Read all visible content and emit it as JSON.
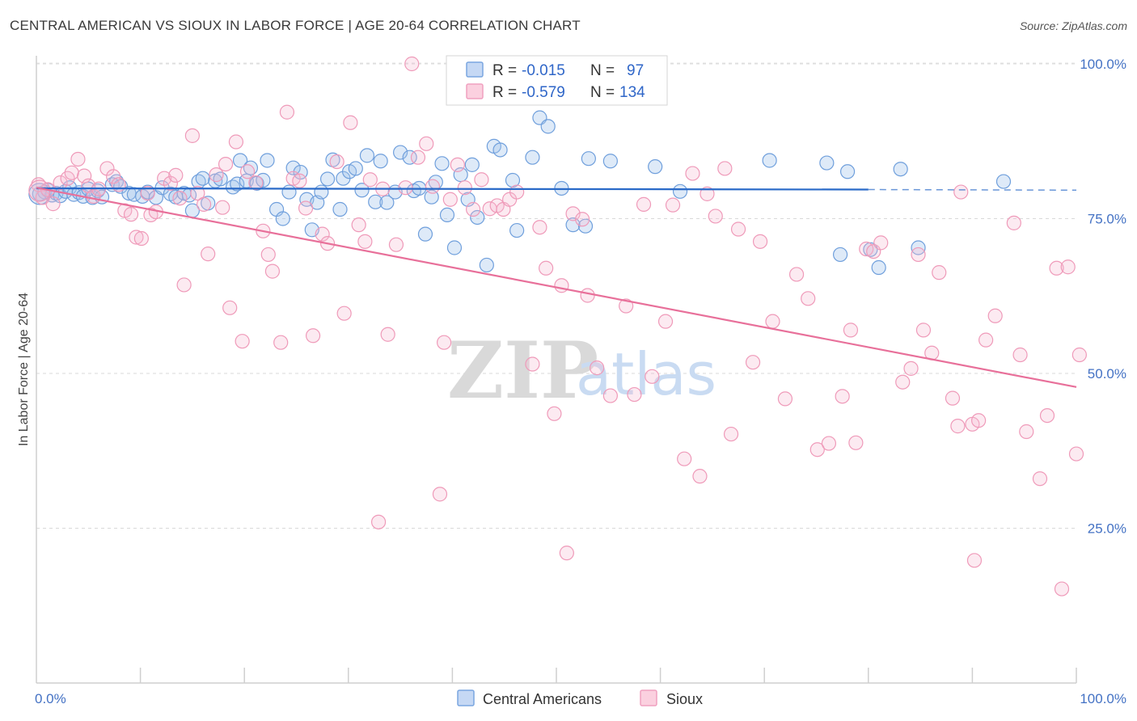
{
  "title": "CENTRAL AMERICAN VS SIOUX IN LABOR FORCE | AGE 20-64 CORRELATION CHART",
  "source": "Source: ZipAtlas.com",
  "watermark": {
    "zip": "ZIP",
    "atlas": "atlas"
  },
  "legend": {
    "rows": [
      {
        "r_label": "R = ",
        "r_value": "-0.015",
        "n_label": "N = ",
        "n_value": "97"
      },
      {
        "r_label": "R = ",
        "r_value": "-0.579",
        "n_label": "N = ",
        "n_value": "134"
      }
    ]
  },
  "bottom_legend": [
    "Central Americans",
    "Sioux"
  ],
  "chart_data": {
    "type": "scatter",
    "xlabel": "",
    "ylabel": "In Labor Force | Age 20-64",
    "xlim": [
      0,
      100
    ],
    "ylim": [
      0,
      103
    ],
    "x_tick_labels": [
      "0.0%",
      "100.0%"
    ],
    "y_ticks": [
      {
        "value": 100,
        "label": "100.0%"
      },
      {
        "value": 75,
        "label": "75.0%"
      },
      {
        "value": 50,
        "label": "50.0%"
      },
      {
        "value": 25,
        "label": "25.0%"
      }
    ],
    "grid": "horizontal dashed",
    "legend_position": "top-center",
    "colors": {
      "central": "#7aa6e0",
      "sioux": "#f0a0bf",
      "central_line": "#2a6ac8",
      "sioux_line": "#e8709a"
    },
    "series": [
      {
        "name": "Central Americans",
        "trend": {
          "x": [
            0,
            80
          ],
          "y": [
            79.9,
            79.7
          ],
          "dashed_to": [
            100,
            79.6
          ]
        },
        "points": [
          [
            0.3,
            79
          ],
          [
            0.8,
            79.3
          ],
          [
            1.1,
            79.6
          ],
          [
            1.5,
            78.8
          ],
          [
            1.9,
            79.1
          ],
          [
            2.3,
            78.7
          ],
          [
            2.8,
            79.4
          ],
          [
            3.2,
            80
          ],
          [
            3.6,
            78.9
          ],
          [
            4.1,
            79.2
          ],
          [
            4.5,
            78.6
          ],
          [
            5,
            79.8
          ],
          [
            5.4,
            78.4
          ],
          [
            5.9,
            79.5
          ],
          [
            6.3,
            78.5
          ],
          [
            7.3,
            80.5
          ],
          [
            7.7,
            81
          ],
          [
            8.1,
            80.2
          ],
          [
            8.9,
            79.1
          ],
          [
            9.4,
            78.9
          ],
          [
            10.2,
            78.6
          ],
          [
            10.7,
            79.3
          ],
          [
            11.5,
            78.4
          ],
          [
            12.1,
            80
          ],
          [
            12.9,
            79
          ],
          [
            13.4,
            78.5
          ],
          [
            14.2,
            79.1
          ],
          [
            14.7,
            78.8
          ],
          [
            15,
            76.3
          ],
          [
            15.6,
            81
          ],
          [
            16,
            81.5
          ],
          [
            16.5,
            77.5
          ],
          [
            17.2,
            81.1
          ],
          [
            17.7,
            81.4
          ],
          [
            18.9,
            80.1
          ],
          [
            19.3,
            80.6
          ],
          [
            19.6,
            84.4
          ],
          [
            20.2,
            81.1
          ],
          [
            20.6,
            83.2
          ],
          [
            21.2,
            80.7
          ],
          [
            21.8,
            81.2
          ],
          [
            22.2,
            84.4
          ],
          [
            23.1,
            76.5
          ],
          [
            23.7,
            75
          ],
          [
            24.3,
            79.3
          ],
          [
            24.7,
            83.2
          ],
          [
            25.4,
            82.5
          ],
          [
            26,
            78.1
          ],
          [
            26.5,
            73.2
          ],
          [
            27,
            77.6
          ],
          [
            27.4,
            79.3
          ],
          [
            28,
            81.4
          ],
          [
            28.5,
            84.5
          ],
          [
            29.2,
            76.5
          ],
          [
            29.5,
            81.5
          ],
          [
            30.1,
            82.6
          ],
          [
            30.7,
            83.1
          ],
          [
            31.3,
            79.6
          ],
          [
            31.8,
            85.2
          ],
          [
            32.6,
            77.7
          ],
          [
            33.1,
            84.3
          ],
          [
            33.7,
            77.6
          ],
          [
            34.5,
            79.3
          ],
          [
            35,
            85.7
          ],
          [
            35.9,
            84.9
          ],
          [
            36.3,
            79.5
          ],
          [
            36.8,
            79.9
          ],
          [
            37.4,
            72.5
          ],
          [
            38,
            78.5
          ],
          [
            38.4,
            80.9
          ],
          [
            39,
            83.9
          ],
          [
            39.5,
            75.6
          ],
          [
            40.2,
            70.3
          ],
          [
            40.8,
            82.1
          ],
          [
            41.5,
            78.1
          ],
          [
            41.9,
            83.7
          ],
          [
            42.4,
            75.2
          ],
          [
            43.3,
            67.5
          ],
          [
            44,
            86.7
          ],
          [
            44.6,
            86.1
          ],
          [
            45.8,
            81.2
          ],
          [
            46.2,
            73.1
          ],
          [
            47.7,
            84.9
          ],
          [
            48.4,
            91.3
          ],
          [
            49.2,
            89.9
          ],
          [
            50.5,
            79.9
          ],
          [
            51.6,
            74
          ],
          [
            52.8,
            73.8
          ],
          [
            53.1,
            84.7
          ],
          [
            55.2,
            84.3
          ],
          [
            59.5,
            83.4
          ],
          [
            61.9,
            79.4
          ],
          [
            70.5,
            84.4
          ],
          [
            76,
            84
          ],
          [
            77.3,
            69.2
          ],
          [
            78,
            82.6
          ],
          [
            80.2,
            70
          ],
          [
            81,
            67.1
          ],
          [
            83.1,
            83
          ],
          [
            84.8,
            70.3
          ],
          [
            93,
            81
          ]
        ]
      },
      {
        "name": "Sioux",
        "trend": {
          "x": [
            0,
            100
          ],
          "y": [
            80,
            47.8
          ]
        },
        "points": [
          [
            0.2,
            80.5
          ],
          [
            0.6,
            78.4
          ],
          [
            1.1,
            79.7
          ],
          [
            1.6,
            77.4
          ],
          [
            2.3,
            80.8
          ],
          [
            3,
            81.5
          ],
          [
            3.4,
            82.4
          ],
          [
            4,
            84.6
          ],
          [
            4.6,
            81.9
          ],
          [
            5,
            80.3
          ],
          [
            5.5,
            78.6
          ],
          [
            6,
            79.8
          ],
          [
            6.8,
            83.1
          ],
          [
            7.4,
            81.8
          ],
          [
            7.9,
            80.5
          ],
          [
            8.5,
            76.3
          ],
          [
            9.1,
            75.7
          ],
          [
            9.6,
            72
          ],
          [
            10.1,
            71.8
          ],
          [
            10.7,
            79.1
          ],
          [
            11,
            75.6
          ],
          [
            11.5,
            76.1
          ],
          [
            12.3,
            81.5
          ],
          [
            12.9,
            80.7
          ],
          [
            13.4,
            82
          ],
          [
            13.8,
            78.3
          ],
          [
            14.2,
            64.3
          ],
          [
            15,
            88.4
          ],
          [
            15.5,
            79.1
          ],
          [
            16.1,
            77.3
          ],
          [
            16.5,
            69.3
          ],
          [
            17.3,
            82.1
          ],
          [
            17.9,
            76.8
          ],
          [
            18.2,
            83.8
          ],
          [
            18.6,
            60.6
          ],
          [
            19.2,
            87.4
          ],
          [
            19.8,
            55.2
          ],
          [
            20.3,
            82.6
          ],
          [
            21.1,
            80.8
          ],
          [
            21.8,
            73
          ],
          [
            22.3,
            69.2
          ],
          [
            22.7,
            66.5
          ],
          [
            23.5,
            55
          ],
          [
            24.1,
            92.2
          ],
          [
            24.7,
            81.5
          ],
          [
            25.3,
            81.1
          ],
          [
            25.9,
            76.7
          ],
          [
            26.6,
            56.1
          ],
          [
            27.5,
            72.5
          ],
          [
            28,
            71
          ],
          [
            28.9,
            84.2
          ],
          [
            29.6,
            59.7
          ],
          [
            30.2,
            90.5
          ],
          [
            31,
            74
          ],
          [
            31.6,
            71.3
          ],
          [
            32.1,
            81.3
          ],
          [
            32.9,
            26
          ],
          [
            33.3,
            79.8
          ],
          [
            33.8,
            56.3
          ],
          [
            34.6,
            70.8
          ],
          [
            35.5,
            80
          ],
          [
            36.1,
            100
          ],
          [
            36.7,
            84.9
          ],
          [
            37.5,
            87.1
          ],
          [
            38.1,
            80.2
          ],
          [
            38.8,
            30.5
          ],
          [
            39.2,
            55
          ],
          [
            39.8,
            78.1
          ],
          [
            40.5,
            83.7
          ],
          [
            41.2,
            80
          ],
          [
            42,
            76.5
          ],
          [
            42.8,
            81.3
          ],
          [
            43.6,
            76.6
          ],
          [
            44.3,
            77.1
          ],
          [
            44.9,
            76.5
          ],
          [
            45.5,
            78.1
          ],
          [
            46.2,
            79.3
          ],
          [
            47.7,
            51.5
          ],
          [
            48.4,
            73.6
          ],
          [
            49,
            67
          ],
          [
            49.8,
            43.5
          ],
          [
            50.5,
            64.2
          ],
          [
            51,
            21
          ],
          [
            51.6,
            75.8
          ],
          [
            52.5,
            74.9
          ],
          [
            53,
            62.6
          ],
          [
            53.9,
            50.9
          ],
          [
            55.2,
            46.4
          ],
          [
            56.7,
            60.9
          ],
          [
            57.5,
            46.6
          ],
          [
            58.4,
            77.3
          ],
          [
            59.2,
            49.5
          ],
          [
            60.5,
            58.4
          ],
          [
            61.2,
            77.2
          ],
          [
            62.3,
            36.2
          ],
          [
            63.1,
            82.3
          ],
          [
            63.8,
            33.4
          ],
          [
            64.5,
            79
          ],
          [
            65.3,
            75.4
          ],
          [
            66.8,
            40.2
          ],
          [
            67.5,
            73.3
          ],
          [
            68.9,
            51.8
          ],
          [
            69.6,
            71.3
          ],
          [
            70.8,
            58.4
          ],
          [
            72,
            45.9
          ],
          [
            73.1,
            66
          ],
          [
            74.2,
            62.1
          ],
          [
            75.1,
            37.7
          ],
          [
            76.2,
            38.7
          ],
          [
            77.5,
            46.3
          ],
          [
            78.3,
            57
          ],
          [
            79.8,
            70.1
          ],
          [
            80.5,
            69.7
          ],
          [
            81.2,
            71.1
          ],
          [
            83.3,
            48.6
          ],
          [
            84.1,
            50.8
          ],
          [
            84.8,
            69.2
          ],
          [
            85.3,
            57
          ],
          [
            86.1,
            53.3
          ],
          [
            86.8,
            66.3
          ],
          [
            88.1,
            46
          ],
          [
            88.9,
            79.3
          ],
          [
            90,
            41.8
          ],
          [
            90.6,
            42.4
          ],
          [
            91.3,
            55.4
          ],
          [
            92.2,
            59.3
          ],
          [
            94,
            74.3
          ],
          [
            94.6,
            53
          ],
          [
            95.2,
            40.6
          ],
          [
            96.5,
            33
          ],
          [
            97.2,
            43.2
          ],
          [
            98.1,
            67
          ],
          [
            99.2,
            67.2
          ],
          [
            100,
            37
          ],
          [
            90.2,
            19.8
          ],
          [
            98.6,
            15.2
          ],
          [
            100.3,
            53
          ],
          [
            88.6,
            41.5
          ],
          [
            78.8,
            38.8
          ],
          [
            66.2,
            83.1
          ]
        ]
      }
    ]
  }
}
